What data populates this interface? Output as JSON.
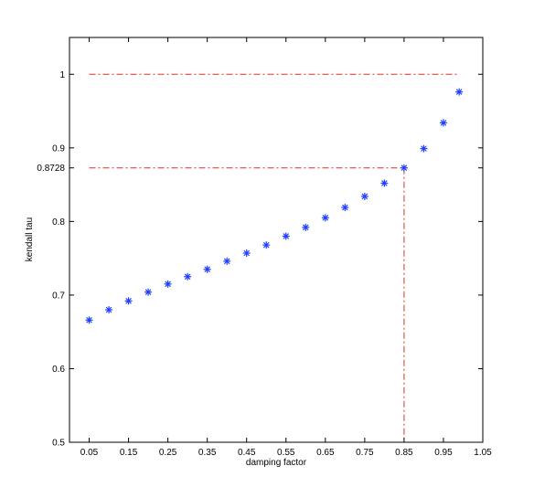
{
  "chart_data": {
    "type": "scatter",
    "title": "",
    "xlabel": "damping factor",
    "ylabel": "kendall tau",
    "xlim": [
      0.0,
      1.05
    ],
    "ylim": [
      0.5,
      1.05
    ],
    "x_ticks": [
      0.05,
      0.15,
      0.25,
      0.35,
      0.45,
      0.55,
      0.65,
      0.75,
      0.85,
      0.95,
      1.05
    ],
    "x_tick_labels": [
      "0.05",
      "0.15",
      "0.25",
      "0.35",
      "0.45",
      "0.55",
      "0.65",
      "0.75",
      "0.85",
      "0.95",
      "1.05"
    ],
    "y_ticks": [
      0.5,
      0.6,
      0.7,
      0.8,
      0.8728,
      0.9,
      1.0
    ],
    "y_tick_labels": [
      "0.5",
      "0.6",
      "0.7",
      "0.8",
      "0.8728",
      "0.9",
      "1"
    ],
    "grid": false,
    "marker": "*",
    "series": [
      {
        "color": "#1f3fff",
        "x": [
          0.05,
          0.1,
          0.15,
          0.2,
          0.25,
          0.3,
          0.35,
          0.4,
          0.45,
          0.5,
          0.55,
          0.6,
          0.65,
          0.7,
          0.75,
          0.8,
          0.85,
          0.9,
          0.95,
          0.99
        ],
        "y": [
          0.666,
          0.68,
          0.692,
          0.704,
          0.715,
          0.725,
          0.735,
          0.746,
          0.757,
          0.768,
          0.78,
          0.792,
          0.805,
          0.819,
          0.834,
          0.852,
          0.8728,
          0.899,
          0.934,
          0.976
        ]
      }
    ],
    "reference_lines": [
      {
        "color": "#e0301e",
        "style": "dash-dot",
        "points": [
          [
            0.05,
            1.0
          ],
          [
            0.99,
            1.0
          ]
        ]
      },
      {
        "color": "#e0301e",
        "style": "dash-dot",
        "points": [
          [
            0.05,
            0.8728
          ],
          [
            0.85,
            0.8728
          ]
        ]
      },
      {
        "color": "#e0301e",
        "style": "dash-dot",
        "points": [
          [
            0.85,
            0.8728
          ],
          [
            0.85,
            0.5
          ]
        ]
      }
    ]
  }
}
